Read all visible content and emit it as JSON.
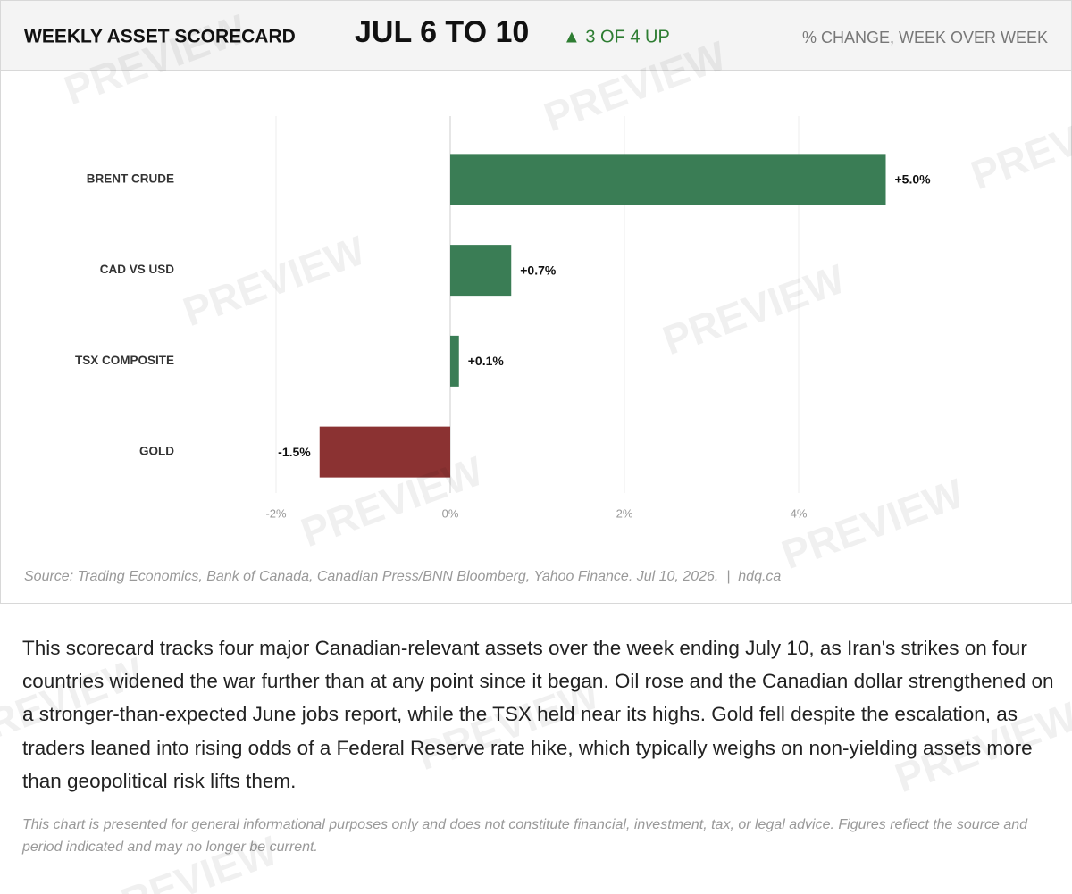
{
  "header": {
    "title": "WEEKLY ASSET SCORECARD",
    "period": "JUL 6 TO 10",
    "status": "▲ 3 OF 4 UP",
    "measure": "% CHANGE, WEEK OVER WEEK"
  },
  "chart_data": {
    "type": "bar",
    "orientation": "horizontal",
    "categories": [
      "BRENT CRUDE",
      "CAD VS USD",
      "TSX COMPOSITE",
      "GOLD"
    ],
    "values": [
      5.0,
      0.7,
      0.1,
      -1.5
    ],
    "value_labels": [
      "+5.0%",
      "+0.7%",
      "+0.1%",
      "-1.5%"
    ],
    "colors": [
      "#3a7d55",
      "#3a7d55",
      "#3a7d55",
      "#8b3232"
    ],
    "xlim": [
      -2,
      6
    ],
    "xticks": [
      {
        "value": -2,
        "label": "-2%"
      },
      {
        "value": 0,
        "label": "0%"
      },
      {
        "value": 2,
        "label": "2%"
      },
      {
        "value": 4,
        "label": "4%"
      }
    ],
    "grid": true
  },
  "source": "Source: Trading Economics, Bank of Canada, Canadian Press/BNN Bloomberg, Yahoo Finance. Jul 10, 2026.  |  hdq.ca",
  "body": "This scorecard tracks four major Canadian-relevant assets over the week ending July 10, as Iran's strikes on four countries widened the war further than at any point since it began. Oil rose and the Canadian dollar strengthened on a stronger-than-expected June jobs report, while the TSX held near its highs. Gold fell despite the escalation, as traders leaned into rising odds of a Federal Reserve rate hike, which typically weighs on non-yielding assets more than geopolitical risk lifts them.",
  "disclaimer": "This chart is presented for general informational purposes only and does not constitute financial, investment, tax, or legal advice. Figures reflect the source and period indicated and may no longer be current.",
  "watermark": "PREVIEW"
}
